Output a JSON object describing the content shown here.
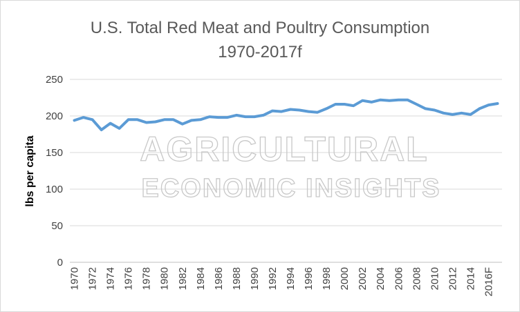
{
  "chart_data": {
    "type": "line",
    "title": "U.S. Total Red Meat and Poultry Consumption",
    "subtitle": "1970-2017f",
    "xlabel": "",
    "ylabel": "lbs per capita",
    "ylim": [
      0,
      250
    ],
    "yticks": [
      0,
      50,
      100,
      150,
      200,
      250
    ],
    "grid": true,
    "legend": "none",
    "line_color": "#5b9bd5",
    "categories": [
      "1970",
      "1971",
      "1972",
      "1973",
      "1974",
      "1975",
      "1976",
      "1977",
      "1978",
      "1979",
      "1980",
      "1981",
      "1982",
      "1983",
      "1984",
      "1985",
      "1986",
      "1987",
      "1988",
      "1989",
      "1990",
      "1991",
      "1992",
      "1993",
      "1994",
      "1995",
      "1996",
      "1997",
      "1998",
      "1999",
      "2000",
      "2001",
      "2002",
      "2003",
      "2004",
      "2005",
      "2006",
      "2007",
      "2008",
      "2009",
      "2010",
      "2011",
      "2012",
      "2013",
      "2014",
      "2015",
      "2016F",
      "2017F"
    ],
    "tick_labels": [
      "1970",
      "1972",
      "1974",
      "1976",
      "1978",
      "1980",
      "1982",
      "1984",
      "1986",
      "1988",
      "1990",
      "1992",
      "1994",
      "1996",
      "1998",
      "2000",
      "2002",
      "2004",
      "2006",
      "2008",
      "2010",
      "2012",
      "2014",
      "2016F"
    ],
    "series": [
      {
        "name": "",
        "values": [
          194,
          198,
          195,
          181,
          190,
          183,
          195,
          195,
          191,
          192,
          195,
          195,
          189,
          194,
          195,
          199,
          198,
          198,
          201,
          199,
          199,
          201,
          207,
          206,
          209,
          208,
          206,
          205,
          210,
          216,
          216,
          214,
          221,
          219,
          222,
          221,
          222,
          222,
          216,
          210,
          208,
          204,
          202,
          204,
          202,
          210,
          215,
          217
        ]
      }
    ]
  },
  "watermark": {
    "line1": "AGRICULTURAL",
    "line2": "ECONOMIC INSIGHTS"
  }
}
